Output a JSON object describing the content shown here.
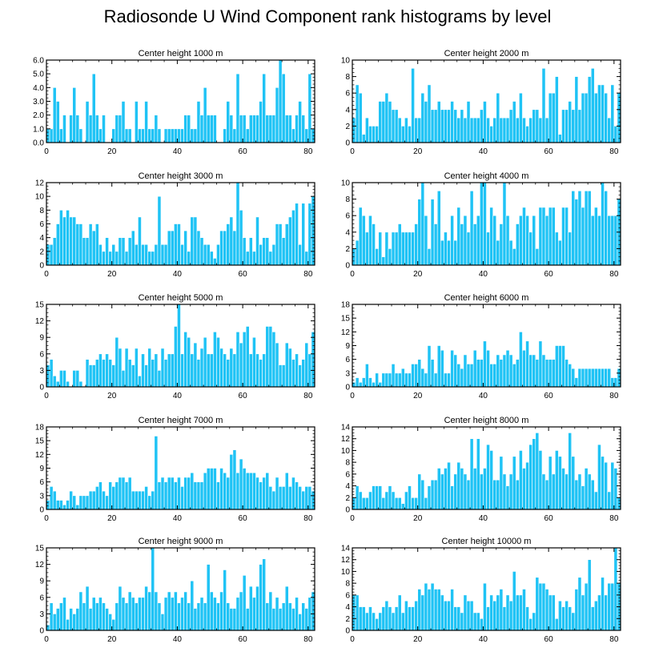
{
  "title": "Radiosonde U Wind Component rank histograms by level",
  "colors": {
    "bar": "#1fc3f5",
    "bar_edge": "#ffffff",
    "axis": "#000000"
  },
  "chart_data": [
    {
      "type": "bar",
      "title": "Center height 1000 m",
      "xlim": [
        0,
        82
      ],
      "ylim": [
        0,
        6
      ],
      "xticks": [
        0,
        20,
        40,
        60,
        80
      ],
      "yticks": [
        0,
        1,
        2,
        3,
        4,
        5,
        6
      ],
      "ytick_labels": [
        "0.0",
        "1.0",
        "2.0",
        "3.0",
        "4.0",
        "5.0",
        "6.0"
      ],
      "values": [
        1,
        1,
        4,
        3,
        1,
        2,
        0,
        2,
        4,
        2,
        1,
        0,
        3,
        2,
        5,
        2,
        1,
        2,
        0,
        0,
        1,
        2,
        2,
        3,
        1,
        1,
        0,
        3,
        1,
        1,
        3,
        1,
        1,
        2,
        1,
        0,
        1,
        1,
        1,
        1,
        1,
        1,
        2,
        2,
        1,
        1,
        3,
        2,
        4,
        2,
        2,
        2,
        0,
        0,
        1,
        3,
        2,
        1,
        5,
        2,
        2,
        1,
        2,
        2,
        2,
        3,
        5,
        2,
        2,
        2,
        4,
        6,
        5,
        2,
        2,
        1,
        2,
        3,
        2,
        1,
        5,
        1
      ]
    },
    {
      "type": "bar",
      "title": "Center height 2000 m",
      "xlim": [
        0,
        82
      ],
      "ylim": [
        0,
        10
      ],
      "xticks": [
        0,
        20,
        40,
        60,
        80
      ],
      "yticks": [
        0,
        2,
        4,
        6,
        8,
        10
      ],
      "ytick_labels": [
        "0",
        "2",
        "4",
        "6",
        "8",
        "10"
      ],
      "values": [
        3,
        7,
        6,
        1,
        3,
        2,
        2,
        2,
        5,
        5,
        6,
        5,
        4,
        4,
        3,
        2,
        3,
        2,
        9,
        3,
        3,
        6,
        5,
        7,
        4,
        4,
        5,
        4,
        4,
        4,
        5,
        4,
        3,
        4,
        3,
        5,
        3,
        3,
        3,
        4,
        5,
        3,
        2,
        3,
        6,
        3,
        3,
        3,
        4,
        5,
        3,
        6,
        3,
        2,
        3,
        4,
        4,
        3,
        9,
        3,
        6,
        6,
        8,
        1,
        4,
        4,
        5,
        4,
        8,
        4,
        6,
        6,
        8,
        9,
        6,
        7,
        7,
        6,
        3,
        7,
        2,
        6
      ]
    },
    {
      "type": "bar",
      "title": "Center height 3000 m",
      "xlim": [
        0,
        82
      ],
      "ylim": [
        0,
        12
      ],
      "xticks": [
        0,
        20,
        40,
        60,
        80
      ],
      "yticks": [
        0,
        2,
        4,
        6,
        8,
        10,
        12
      ],
      "ytick_labels": [
        "0",
        "2",
        "4",
        "6",
        "8",
        "10",
        "12"
      ],
      "values": [
        3,
        3,
        4,
        6,
        8,
        7,
        8,
        7,
        7,
        6,
        6,
        4,
        4,
        6,
        5,
        6,
        3,
        2,
        4,
        2,
        3,
        2,
        4,
        4,
        2,
        4,
        5,
        3,
        7,
        3,
        3,
        2,
        2,
        3,
        10,
        3,
        3,
        5,
        5,
        6,
        6,
        3,
        5,
        2,
        7,
        7,
        5,
        4,
        3,
        3,
        2,
        1,
        3,
        5,
        5,
        6,
        7,
        5,
        12,
        8,
        4,
        2,
        4,
        2,
        7,
        3,
        4,
        4,
        2,
        3,
        6,
        6,
        4,
        6,
        7,
        8,
        9,
        3,
        9,
        2,
        9,
        10
      ]
    },
    {
      "type": "bar",
      "title": "Center height 4000 m",
      "xlim": [
        0,
        82
      ],
      "ylim": [
        0,
        10
      ],
      "xticks": [
        0,
        20,
        40,
        60,
        80
      ],
      "yticks": [
        0,
        2,
        4,
        6,
        8,
        10
      ],
      "ytick_labels": [
        "0",
        "2",
        "4",
        "6",
        "8",
        "10"
      ],
      "values": [
        2,
        3,
        7,
        6,
        4,
        6,
        5,
        2,
        4,
        1,
        4,
        2,
        4,
        4,
        5,
        4,
        4,
        4,
        4,
        5,
        8,
        10,
        6,
        2,
        8,
        5,
        9,
        3,
        4,
        3,
        6,
        3,
        7,
        5,
        6,
        4,
        9,
        5,
        6,
        10,
        10,
        4,
        7,
        6,
        3,
        5,
        10,
        6,
        3,
        2,
        5,
        6,
        7,
        6,
        4,
        6,
        2,
        7,
        7,
        6,
        7,
        7,
        4,
        3,
        7,
        7,
        4,
        9,
        8,
        9,
        7,
        9,
        9,
        6,
        7,
        6,
        10,
        9,
        6,
        6,
        6,
        8
      ]
    },
    {
      "type": "bar",
      "title": "Center height 5000 m",
      "xlim": [
        0,
        82
      ],
      "ylim": [
        0,
        15
      ],
      "xticks": [
        0,
        20,
        40,
        60,
        80
      ],
      "yticks": [
        0,
        3,
        6,
        9,
        12,
        15
      ],
      "ytick_labels": [
        "0",
        "3",
        "6",
        "9",
        "12",
        "15"
      ],
      "values": [
        4,
        5,
        2,
        1,
        3,
        3,
        1,
        0,
        3,
        3,
        1,
        0,
        5,
        4,
        4,
        5,
        6,
        5,
        6,
        5,
        4,
        9,
        7,
        3,
        7,
        5,
        4,
        7,
        2,
        6,
        4,
        7,
        5,
        6,
        3,
        7,
        5,
        6,
        6,
        11,
        15,
        6,
        10,
        9,
        6,
        8,
        5,
        7,
        9,
        6,
        6,
        10,
        9,
        7,
        6,
        5,
        7,
        6,
        10,
        8,
        10,
        11,
        6,
        9,
        6,
        5,
        6,
        11,
        11,
        10,
        8,
        4,
        4,
        8,
        7,
        5,
        6,
        4,
        5,
        8,
        6,
        10
      ]
    },
    {
      "type": "bar",
      "title": "Center height 6000 m",
      "xlim": [
        0,
        82
      ],
      "ylim": [
        0,
        18
      ],
      "xticks": [
        0,
        20,
        40,
        60,
        80
      ],
      "yticks": [
        0,
        3,
        6,
        9,
        12,
        15,
        18
      ],
      "ytick_labels": [
        "0",
        "3",
        "6",
        "9",
        "12",
        "15",
        "18"
      ],
      "values": [
        1,
        2,
        1,
        2,
        5,
        2,
        1,
        3,
        1,
        3,
        3,
        3,
        5,
        3,
        3,
        4,
        3,
        3,
        5,
        5,
        6,
        4,
        3,
        9,
        6,
        3,
        9,
        8,
        3,
        3,
        8,
        7,
        5,
        4,
        7,
        5,
        5,
        8,
        6,
        6,
        10,
        8,
        5,
        5,
        7,
        6,
        7,
        8,
        7,
        5,
        6,
        12,
        8,
        10,
        7,
        7,
        6,
        10,
        7,
        6,
        6,
        6,
        9,
        9,
        9,
        6,
        5,
        4,
        2,
        4,
        4,
        4,
        4,
        4,
        4,
        4,
        4,
        4,
        4,
        2,
        2,
        4
      ]
    },
    {
      "type": "bar",
      "title": "Center height 7000 m",
      "xlim": [
        0,
        82
      ],
      "ylim": [
        0,
        18
      ],
      "xticks": [
        0,
        20,
        40,
        60,
        80
      ],
      "yticks": [
        0,
        3,
        6,
        9,
        12,
        15,
        18
      ],
      "ytick_labels": [
        "0",
        "3",
        "6",
        "9",
        "12",
        "15",
        "18"
      ],
      "values": [
        2,
        5,
        4,
        2,
        2,
        1,
        2,
        4,
        3,
        1,
        3,
        3,
        3,
        4,
        4,
        5,
        6,
        4,
        3,
        6,
        5,
        6,
        7,
        7,
        6,
        7,
        4,
        4,
        4,
        4,
        5,
        3,
        4,
        16,
        6,
        7,
        6,
        7,
        7,
        6,
        7,
        5,
        7,
        7,
        8,
        6,
        6,
        6,
        8,
        9,
        9,
        9,
        6,
        9,
        8,
        7,
        12,
        13,
        8,
        11,
        9,
        8,
        8,
        8,
        7,
        6,
        7,
        8,
        5,
        4,
        7,
        5,
        5,
        8,
        5,
        7,
        6,
        5,
        4,
        5,
        5,
        4
      ]
    },
    {
      "type": "bar",
      "title": "Center height 8000 m",
      "xlim": [
        0,
        82
      ],
      "ylim": [
        0,
        14
      ],
      "xticks": [
        0,
        20,
        40,
        60,
        80
      ],
      "yticks": [
        0,
        2,
        4,
        6,
        8,
        10,
        12,
        14
      ],
      "ytick_labels": [
        "0",
        "2",
        "4",
        "6",
        "8",
        "10",
        "12",
        "14"
      ],
      "values": [
        2,
        4,
        3,
        2,
        2,
        3,
        4,
        4,
        4,
        2,
        3,
        4,
        3,
        2,
        2,
        1,
        3,
        4,
        2,
        2,
        6,
        5,
        2,
        4,
        5,
        5,
        7,
        6,
        7,
        8,
        4,
        6,
        8,
        7,
        6,
        5,
        12,
        7,
        12,
        6,
        7,
        11,
        10,
        5,
        5,
        9,
        6,
        4,
        6,
        9,
        5,
        10,
        7,
        8,
        11,
        12,
        13,
        10,
        6,
        5,
        9,
        6,
        10,
        9,
        7,
        6,
        13,
        9,
        5,
        6,
        4,
        7,
        6,
        5,
        3,
        11,
        9,
        8,
        3,
        8,
        7,
        2
      ]
    },
    {
      "type": "bar",
      "title": "Center height 9000 m",
      "xlim": [
        0,
        82
      ],
      "ylim": [
        0,
        15
      ],
      "xticks": [
        0,
        20,
        40,
        60,
        80
      ],
      "yticks": [
        0,
        3,
        6,
        9,
        12,
        15
      ],
      "ytick_labels": [
        "0",
        "3",
        "6",
        "9",
        "12",
        "15"
      ],
      "values": [
        1,
        5,
        3,
        4,
        5,
        6,
        2,
        4,
        3,
        4,
        7,
        5,
        8,
        4,
        6,
        5,
        6,
        5,
        4,
        3,
        2,
        5,
        8,
        6,
        5,
        7,
        6,
        5,
        6,
        6,
        8,
        7,
        15,
        7,
        5,
        3,
        6,
        7,
        6,
        7,
        5,
        6,
        7,
        5,
        9,
        4,
        5,
        6,
        5,
        12,
        7,
        6,
        5,
        7,
        11,
        5,
        4,
        4,
        6,
        7,
        10,
        4,
        8,
        6,
        8,
        12,
        13,
        5,
        7,
        4,
        6,
        4,
        5,
        8,
        5,
        4,
        6,
        3,
        5,
        4,
        6,
        7
      ]
    },
    {
      "type": "bar",
      "title": "Center height 10000 m",
      "xlim": [
        0,
        82
      ],
      "ylim": [
        0,
        14
      ],
      "xticks": [
        0,
        20,
        40,
        60,
        80
      ],
      "yticks": [
        0,
        2,
        4,
        6,
        8,
        10,
        12,
        14
      ],
      "ytick_labels": [
        "0",
        "2",
        "4",
        "6",
        "8",
        "10",
        "12",
        "14"
      ],
      "values": [
        6,
        6,
        4,
        4,
        3,
        4,
        3,
        2,
        3,
        4,
        5,
        4,
        3,
        4,
        6,
        3,
        5,
        4,
        4,
        5,
        7,
        6,
        8,
        7,
        8,
        7,
        7,
        6,
        5,
        5,
        7,
        4,
        4,
        3,
        6,
        5,
        5,
        3,
        3,
        2,
        8,
        4,
        6,
        5,
        6,
        7,
        4,
        6,
        5,
        10,
        6,
        6,
        7,
        4,
        2,
        3,
        9,
        8,
        8,
        7,
        6,
        6,
        2,
        5,
        4,
        5,
        4,
        3,
        7,
        9,
        6,
        8,
        12,
        4,
        5,
        6,
        9,
        6,
        8,
        8,
        14,
        8
      ]
    }
  ]
}
